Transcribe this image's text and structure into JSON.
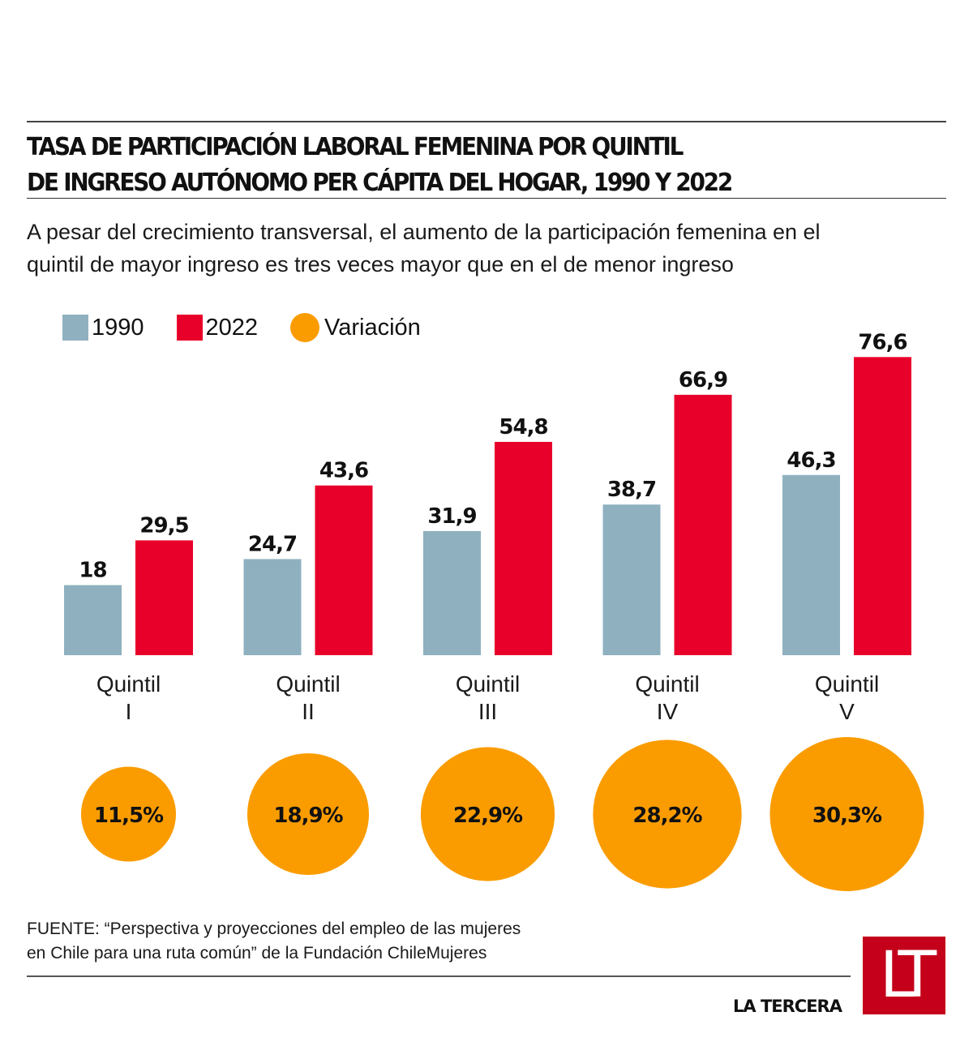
{
  "chart_data": {
    "type": "bar",
    "title": "TASA DE PARTICIPACIÓN LABORAL FEMENINA POR QUINTIL DE INGRESO AUTÓNOMO PER CÁPITA DEL HOGAR, 1990 Y 2022",
    "title_lines": [
      "TASA DE PARTICIPACIÓN LABORAL FEMENINA POR QUINTIL",
      "DE INGRESO AUTÓNOMO PER CÁPITA DEL HOGAR, 1990 Y 2022"
    ],
    "subtitle_lines": [
      "A pesar del crecimiento transversal, el aumento de la participación femenina en el",
      "quintil de mayor ingreso es tres veces mayor que en el de menor ingreso"
    ],
    "categories": [
      "Quintil I",
      "Quintil II",
      "Quintil III",
      "Quintil IV",
      "Quintil V"
    ],
    "category_lines": [
      [
        "Quintil",
        "I"
      ],
      [
        "Quintil",
        "II"
      ],
      [
        "Quintil",
        "III"
      ],
      [
        "Quintil",
        "IV"
      ],
      [
        "Quintil",
        "V"
      ]
    ],
    "series": [
      {
        "name": "1990",
        "color": "#8fb1bf",
        "values": [
          18,
          24.7,
          31.9,
          38.7,
          46.3
        ],
        "labels": [
          "18",
          "24,7",
          "31,9",
          "38,7",
          "46,3"
        ]
      },
      {
        "name": "2022",
        "color": "#e8002b",
        "values": [
          29.5,
          43.6,
          54.8,
          66.9,
          76.6
        ],
        "labels": [
          "29,5",
          "43,6",
          "54,8",
          "66,9",
          "76,6"
        ]
      }
    ],
    "variation": {
      "name": "Variación",
      "color": "#fa9c00",
      "values": [
        11.5,
        18.9,
        22.9,
        28.2,
        30.3
      ],
      "labels": [
        "11,5%",
        "18,9%",
        "22,9%",
        "28,2%",
        "30,3%"
      ]
    },
    "xlabel": "",
    "ylabel": "",
    "ylim": [
      0,
      80
    ],
    "grid": false,
    "legend": "top-left"
  },
  "legend": {
    "items": [
      "1990",
      "2022",
      "Variación"
    ]
  },
  "footer": {
    "source_lines": [
      "FUENTE: “Perspectiva y proyecciones del empleo de las mujeres",
      "en Chile para una ruta común” de la Fundación ChileMujeres"
    ],
    "brand": "LA TERCERA",
    "logo": "LT"
  }
}
